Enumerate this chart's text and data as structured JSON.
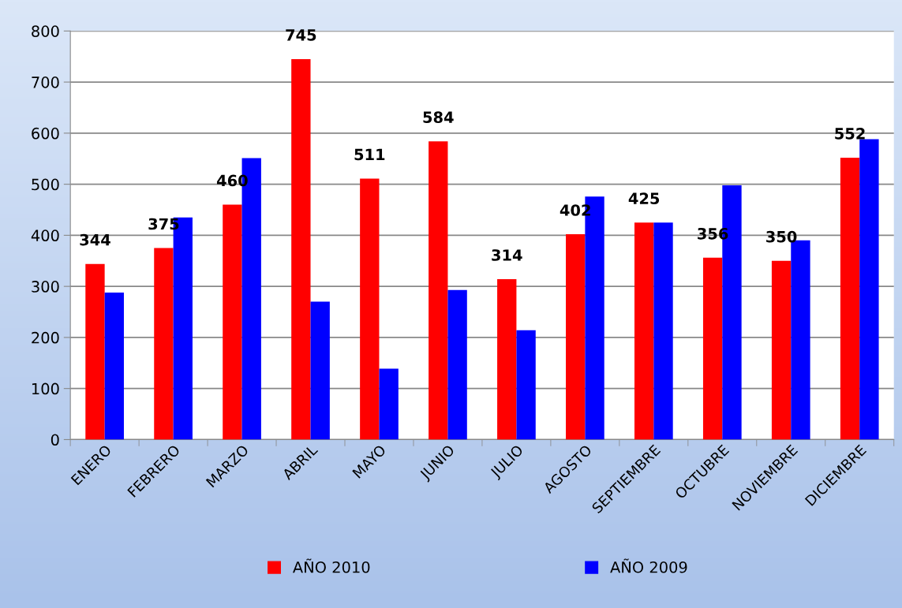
{
  "chart_data": {
    "type": "bar",
    "categories": [
      "ENERO",
      "FEBRERO",
      "MARZO",
      "ABRIL",
      "MAYO",
      "JUNIO",
      "JULIO",
      "AGOSTO",
      "SEPTIEMBRE",
      "OCTUBRE",
      "NOVIEMBRE",
      "DICIEMBRE"
    ],
    "series": [
      {
        "name": "AÑO 2010",
        "color": "#ff0000",
        "values": [
          344,
          375,
          460,
          745,
          511,
          584,
          314,
          402,
          425,
          356,
          350,
          552
        ],
        "value_labels": [
          "344",
          "375",
          "460",
          "745",
          "511",
          "584",
          "314",
          "402",
          "425",
          "356",
          "350",
          "552"
        ]
      },
      {
        "name": "AÑO 2009",
        "color": "#0000ff",
        "values": [
          288,
          435,
          551,
          270,
          139,
          293,
          214,
          476,
          425,
          498,
          390,
          588
        ]
      }
    ],
    "ylim": [
      0,
      800
    ],
    "yticks": [
      0,
      100,
      200,
      300,
      400,
      500,
      600,
      700,
      800
    ],
    "grid": "y",
    "legend": "bottom"
  }
}
